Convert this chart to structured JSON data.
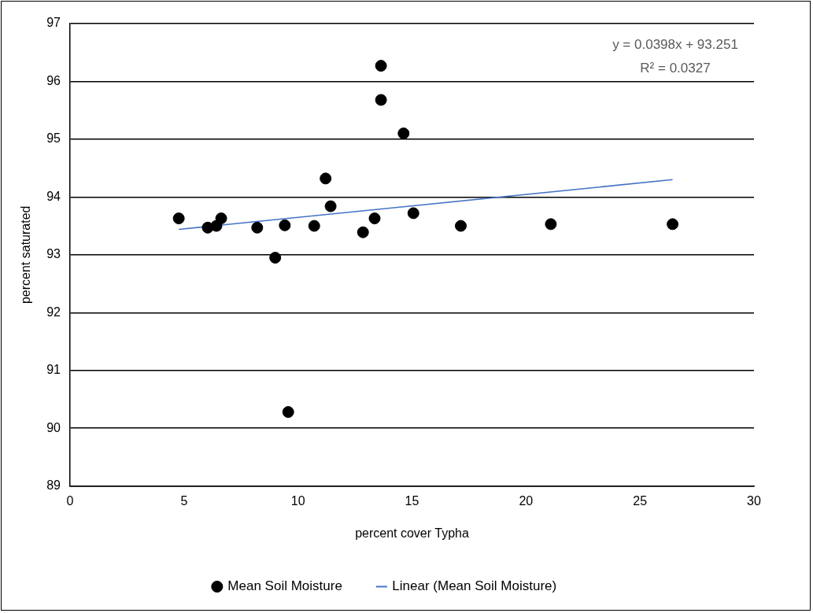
{
  "chart_data": {
    "type": "scatter",
    "xlabel": "percent cover Typha",
    "ylabel": "percent saturated",
    "xlim": [
      0,
      30
    ],
    "xticks": [
      0,
      5,
      10,
      15,
      20,
      25,
      30
    ],
    "ylim": [
      89,
      97
    ],
    "yticks": [
      89,
      90,
      91,
      92,
      93,
      94,
      95,
      96,
      97
    ],
    "grid": "y",
    "legend": "bottom",
    "marker": "circle",
    "annotations": [
      "y = 0.0398x + 93.251",
      "R² = 0.0327"
    ],
    "series": [
      {
        "name": "Mean Soil Moisture",
        "color": "#000000",
        "x": [
          4.77,
          6.04,
          6.42,
          6.63,
          8.21,
          9.0,
          9.42,
          9.57,
          10.71,
          11.21,
          11.43,
          12.85,
          13.36,
          13.64,
          13.64,
          14.63,
          15.06,
          17.14,
          21.09,
          26.43
        ],
        "values": [
          93.63,
          93.47,
          93.5,
          93.63,
          93.47,
          92.95,
          93.51,
          90.28,
          93.5,
          94.32,
          93.84,
          93.39,
          93.63,
          96.27,
          95.68,
          95.1,
          93.72,
          93.5,
          93.53,
          93.53
        ]
      },
      {
        "name": "Linear (Mean Soil Moisture)",
        "type": "line",
        "color": "#4472c4",
        "marker": "none",
        "line_style": "solid",
        "x": [
          4.77,
          26.43
        ],
        "values": [
          93.44,
          94.3
        ]
      }
    ]
  }
}
